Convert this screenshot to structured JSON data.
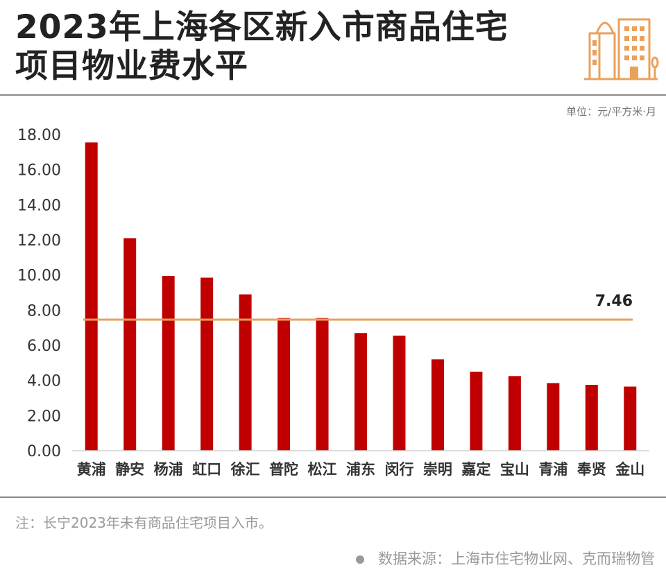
{
  "header": {
    "title_line1": "2023年上海各区新入市商品住宅",
    "title_line2": "项目物业费水平",
    "unit_label": "单位：元/平方米·月",
    "logo_icon": "buildings-icon"
  },
  "footer": {
    "note": "注：长宁2023年未有商品住宅项目入市。",
    "source": "数据来源：上海市住宅物业网、克而瑞物管"
  },
  "colors": {
    "bar": "#c00000",
    "average_line": "#e9a15b",
    "logo": "#e9a15b",
    "text": "#222222",
    "axis_text": "#333333"
  },
  "chart_data": {
    "type": "bar",
    "categories": [
      "黄浦",
      "静安",
      "杨浦",
      "虹口",
      "徐汇",
      "普陀",
      "松江",
      "浦东",
      "闵行",
      "崇明",
      "嘉定",
      "宝山",
      "青浦",
      "奉贤",
      "金山"
    ],
    "values": [
      17.55,
      12.1,
      9.95,
      9.85,
      8.9,
      7.55,
      7.55,
      6.7,
      6.55,
      5.2,
      4.5,
      4.25,
      3.85,
      3.75,
      3.65
    ],
    "ylim": [
      0,
      18
    ],
    "yticks": [
      "0.00",
      "2.00",
      "4.00",
      "6.00",
      "8.00",
      "10.00",
      "12.00",
      "14.00",
      "16.00",
      "18.00"
    ],
    "average": {
      "value": 7.46,
      "label": "7.46"
    },
    "grid": false
  }
}
